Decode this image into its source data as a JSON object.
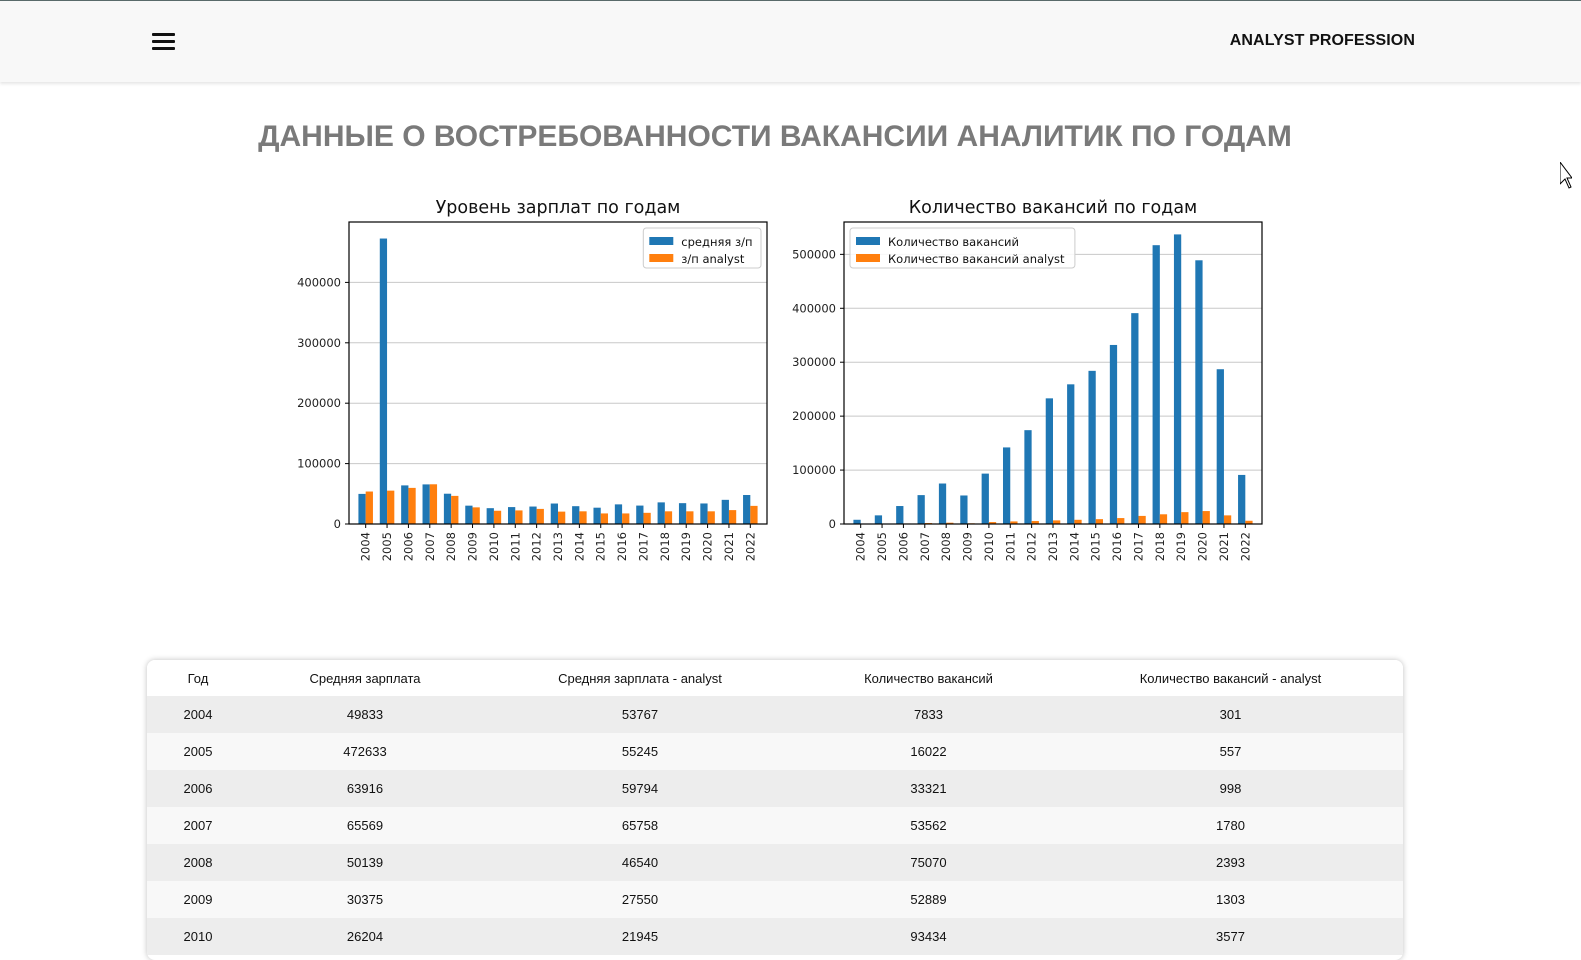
{
  "header": {
    "brand": "ANALYST PROFESSION"
  },
  "main": {
    "title": "ДАННЫЕ О ВОСТРЕБОВАННОСТИ ВАКАНСИИ АНАЛИТИК ПО ГОДАМ"
  },
  "colors": {
    "blue": "#1f77b4",
    "orange": "#ff7f0e",
    "title_gray": "#7a7a7a"
  },
  "chart_data": [
    {
      "type": "bar",
      "title": "Уровень зарплат по годам",
      "categories": [
        "2004",
        "2005",
        "2006",
        "2007",
        "2008",
        "2009",
        "2010",
        "2011",
        "2012",
        "2013",
        "2014",
        "2015",
        "2016",
        "2017",
        "2018",
        "2019",
        "2020",
        "2021",
        "2022"
      ],
      "series": [
        {
          "name": "средняя з/п",
          "color": "#1f77b4",
          "values": [
            49833,
            472633,
            63916,
            65569,
            50139,
            30375,
            26204,
            28000,
            28900,
            33900,
            29500,
            27000,
            32500,
            30500,
            35800,
            34500,
            34000,
            40000,
            48000
          ]
        },
        {
          "name": "з/п analyst",
          "color": "#ff7f0e",
          "values": [
            53767,
            55245,
            59794,
            65758,
            46540,
            27550,
            21945,
            22500,
            25000,
            20500,
            21000,
            17500,
            17500,
            18500,
            21000,
            21000,
            21000,
            23000,
            30000
          ]
        }
      ],
      "yticks": [
        "0",
        "100000",
        "200000",
        "300000",
        "400000"
      ],
      "ylim": [
        0,
        500000
      ],
      "legend": "top-right",
      "grid": "y"
    },
    {
      "type": "bar",
      "title": "Количество вакансий по годам",
      "categories": [
        "2004",
        "2005",
        "2006",
        "2007",
        "2008",
        "2009",
        "2010",
        "2011",
        "2012",
        "2013",
        "2014",
        "2015",
        "2016",
        "2017",
        "2018",
        "2019",
        "2020",
        "2021",
        "2022"
      ],
      "series": [
        {
          "name": "Количество вакансий",
          "color": "#1f77b4",
          "values": [
            7833,
            16022,
            33321,
            53562,
            75070,
            52889,
            93434,
            142000,
            174000,
            233000,
            259000,
            284000,
            332000,
            391000,
            517000,
            537000,
            489000,
            287000,
            91000
          ]
        },
        {
          "name": "Количество вакансий analyst",
          "color": "#ff7f0e",
          "values": [
            301,
            557,
            998,
            1780,
            2393,
            1303,
            3577,
            4800,
            5500,
            6700,
            7800,
            9000,
            11000,
            15000,
            18000,
            22000,
            24000,
            16000,
            6000
          ]
        }
      ],
      "yticks": [
        "0",
        "100000",
        "200000",
        "300000",
        "400000",
        "500000"
      ],
      "ylim": [
        0,
        560000
      ],
      "legend": "top-left",
      "grid": "y"
    }
  ],
  "table": {
    "headers": [
      "Год",
      "Средняя зарплата",
      "Средняя зарплата - analyst",
      "Количество вакансий",
      "Количество вакансий - analyst"
    ],
    "rows": [
      [
        "2004",
        "49833",
        "53767",
        "7833",
        "301"
      ],
      [
        "2005",
        "472633",
        "55245",
        "16022",
        "557"
      ],
      [
        "2006",
        "63916",
        "59794",
        "33321",
        "998"
      ],
      [
        "2007",
        "65569",
        "65758",
        "53562",
        "1780"
      ],
      [
        "2008",
        "50139",
        "46540",
        "75070",
        "2393"
      ],
      [
        "2009",
        "30375",
        "27550",
        "52889",
        "1303"
      ],
      [
        "2010",
        "26204",
        "21945",
        "93434",
        "3577"
      ]
    ]
  }
}
